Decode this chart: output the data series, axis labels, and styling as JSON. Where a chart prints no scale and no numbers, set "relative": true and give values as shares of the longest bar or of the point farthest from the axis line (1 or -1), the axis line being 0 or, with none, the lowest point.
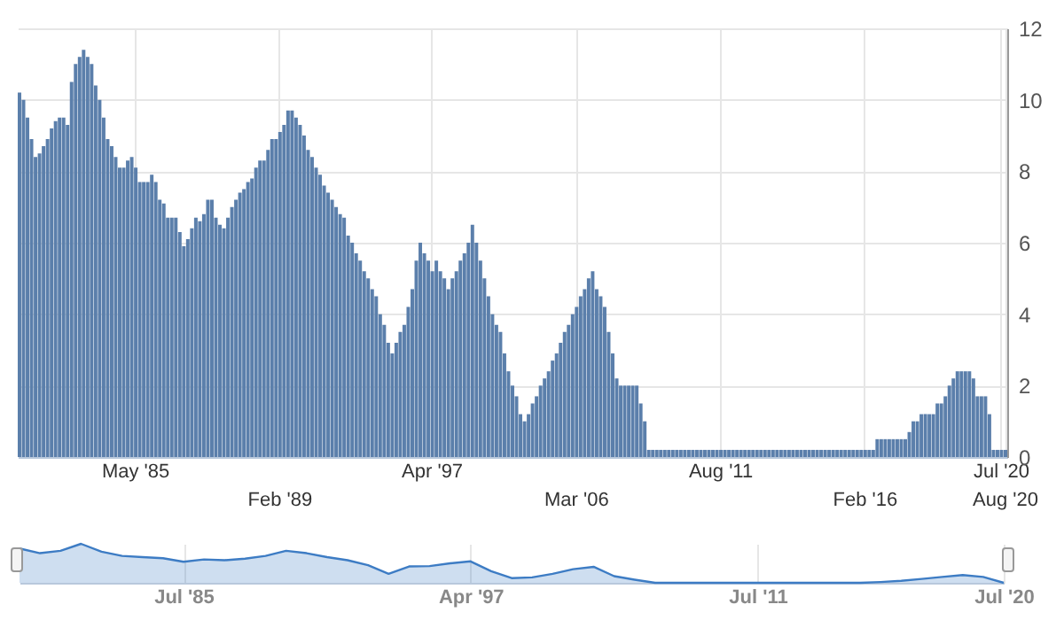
{
  "chart_data": [
    {
      "type": "bar",
      "color": "#5b7fab",
      "grid": true,
      "ylim": [
        0,
        12
      ],
      "yticks": [
        0,
        2,
        4,
        6,
        8,
        10,
        12
      ],
      "categories": [
        null,
        null,
        null,
        null,
        null,
        null,
        null,
        null,
        null,
        null,
        null,
        null,
        null,
        null,
        null,
        null,
        null,
        null,
        null,
        null,
        null,
        null,
        null,
        null,
        null,
        null,
        null,
        null,
        null,
        "May '85",
        null,
        null,
        null,
        null,
        null,
        null,
        null,
        null,
        null,
        null,
        null,
        null,
        null,
        null,
        null,
        null,
        null,
        null,
        null,
        null,
        null,
        null,
        null,
        null,
        null,
        null,
        null,
        null,
        null,
        null,
        null,
        null,
        null,
        null,
        null,
        "Feb '89",
        null,
        null,
        null,
        null,
        null,
        null,
        null,
        null,
        null,
        null,
        null,
        null,
        null,
        null,
        null,
        null,
        null,
        null,
        null,
        null,
        null,
        null,
        null,
        null,
        null,
        null,
        null,
        null,
        null,
        null,
        null,
        null,
        null,
        null,
        null,
        null,
        null,
        "Apr '97",
        null,
        null,
        null,
        null,
        null,
        null,
        null,
        null,
        null,
        null,
        null,
        null,
        null,
        null,
        null,
        null,
        null,
        null,
        null,
        null,
        null,
        null,
        null,
        null,
        null,
        null,
        null,
        null,
        null,
        null,
        null,
        null,
        null,
        null,
        null,
        "Mar '06",
        null,
        null,
        null,
        null,
        null,
        null,
        null,
        null,
        null,
        null,
        null,
        null,
        null,
        null,
        null,
        null,
        null,
        null,
        null,
        null,
        null,
        null,
        null,
        null,
        null,
        null,
        null,
        null,
        null,
        null,
        null,
        null,
        null,
        null,
        null,
        "Aug '11",
        null,
        null,
        null,
        null,
        null,
        null,
        null,
        null,
        null,
        null,
        null,
        null,
        null,
        null,
        null,
        null,
        null,
        null,
        null,
        null,
        null,
        null,
        null,
        null,
        null,
        null,
        null,
        null,
        null,
        null,
        null,
        null,
        null,
        null,
        null,
        "Feb '16",
        null,
        null,
        null,
        null,
        null,
        null,
        null,
        null,
        null,
        null,
        null,
        null,
        null,
        null,
        null,
        null,
        null,
        null,
        null,
        null,
        null,
        null,
        null,
        null,
        null,
        null,
        null,
        null,
        null,
        null,
        null,
        null,
        null,
        "Jul '20",
        "Aug '20"
      ],
      "values": [
        10.2,
        10.0,
        9.5,
        8.9,
        8.4,
        8.5,
        8.7,
        8.9,
        9.2,
        9.4,
        9.5,
        9.5,
        9.3,
        10.5,
        11.0,
        11.2,
        11.4,
        11.2,
        11.0,
        10.4,
        10.0,
        9.5,
        8.9,
        8.7,
        8.4,
        8.1,
        8.1,
        8.3,
        8.4,
        8.1,
        7.7,
        7.7,
        7.7,
        7.9,
        7.7,
        7.2,
        7.1,
        6.7,
        6.7,
        6.7,
        6.3,
        5.9,
        6.1,
        6.4,
        6.7,
        6.6,
        6.8,
        7.2,
        7.2,
        6.7,
        6.5,
        6.4,
        6.7,
        7.0,
        7.2,
        7.4,
        7.5,
        7.7,
        7.8,
        8.1,
        8.3,
        8.3,
        8.6,
        8.9,
        8.9,
        9.1,
        9.3,
        9.7,
        9.7,
        9.5,
        9.3,
        9.0,
        8.6,
        8.4,
        8.1,
        7.9,
        7.6,
        7.4,
        7.2,
        7.0,
        6.8,
        6.7,
        6.2,
        6.0,
        5.7,
        5.5,
        5.2,
        5.0,
        4.7,
        4.5,
        4.0,
        3.7,
        3.2,
        2.9,
        3.2,
        3.5,
        3.7,
        4.2,
        4.7,
        5.5,
        6.0,
        5.7,
        5.5,
        5.2,
        5.5,
        5.2,
        5.0,
        4.7,
        5.0,
        5.2,
        5.5,
        5.7,
        6.0,
        6.5,
        6.0,
        5.5,
        5.0,
        4.5,
        4.0,
        3.7,
        3.5,
        2.9,
        2.4,
        2.0,
        1.7,
        1.2,
        1.0,
        1.2,
        1.5,
        1.7,
        2.0,
        2.2,
        2.4,
        2.7,
        2.9,
        3.2,
        3.5,
        3.7,
        4.0,
        4.2,
        4.5,
        4.7,
        5.0,
        5.2,
        4.7,
        4.5,
        4.2,
        3.5,
        2.9,
        2.2,
        2.0,
        2.0,
        2.0,
        2.0,
        2.0,
        1.5,
        1.0,
        0.2,
        0.2,
        0.2,
        0.2,
        0.2,
        0.2,
        0.2,
        0.2,
        0.2,
        0.2,
        0.2,
        0.2,
        0.2,
        0.2,
        0.2,
        0.2,
        0.2,
        0.2,
        0.2,
        0.2,
        0.2,
        0.2,
        0.2,
        0.2,
        0.2,
        0.2,
        0.2,
        0.2,
        0.2,
        0.2,
        0.2,
        0.2,
        0.2,
        0.2,
        0.2,
        0.2,
        0.2,
        0.2,
        0.2,
        0.2,
        0.2,
        0.2,
        0.2,
        0.2,
        0.2,
        0.2,
        0.2,
        0.2,
        0.2,
        0.2,
        0.2,
        0.2,
        0.2,
        0.2,
        0.2,
        0.2,
        0.2,
        0.5,
        0.5,
        0.5,
        0.5,
        0.5,
        0.5,
        0.5,
        0.5,
        0.7,
        1.0,
        1.0,
        1.2,
        1.2,
        1.2,
        1.2,
        1.5,
        1.5,
        1.7,
        2.0,
        2.2,
        2.4,
        2.4,
        2.4,
        2.4,
        2.2,
        1.7,
        1.7,
        1.7,
        1.2,
        0.2,
        0.2,
        0.2,
        0.2
      ]
    },
    {
      "type": "area",
      "relative": true,
      "color": "#3d7cc4",
      "grid": "x",
      "tick_labels": "x",
      "categories": [
        null,
        null,
        null,
        null,
        null,
        null,
        null,
        null,
        "Jul '85",
        null,
        null,
        null,
        null,
        null,
        null,
        null,
        null,
        null,
        null,
        null,
        null,
        null,
        "Apr '97",
        null,
        null,
        null,
        null,
        null,
        null,
        null,
        null,
        null,
        null,
        null,
        null,
        null,
        "Jul '11",
        null,
        null,
        null,
        null,
        null,
        null,
        null,
        null,
        null,
        null,
        null,
        "Jul '20"
      ],
      "values": [
        0.88,
        0.76,
        0.82,
        1.0,
        0.8,
        0.69,
        0.66,
        0.63,
        0.54,
        0.6,
        0.58,
        0.62,
        0.69,
        0.82,
        0.76,
        0.66,
        0.58,
        0.45,
        0.23,
        0.42,
        0.43,
        0.5,
        0.55,
        0.3,
        0.12,
        0.14,
        0.23,
        0.35,
        0.41,
        0.17,
        0.08,
        0,
        0,
        0,
        0,
        0,
        0,
        0,
        0,
        0,
        0,
        0,
        0.02,
        0.05,
        0.1,
        0.15,
        0.2,
        0.15,
        0
      ]
    }
  ]
}
